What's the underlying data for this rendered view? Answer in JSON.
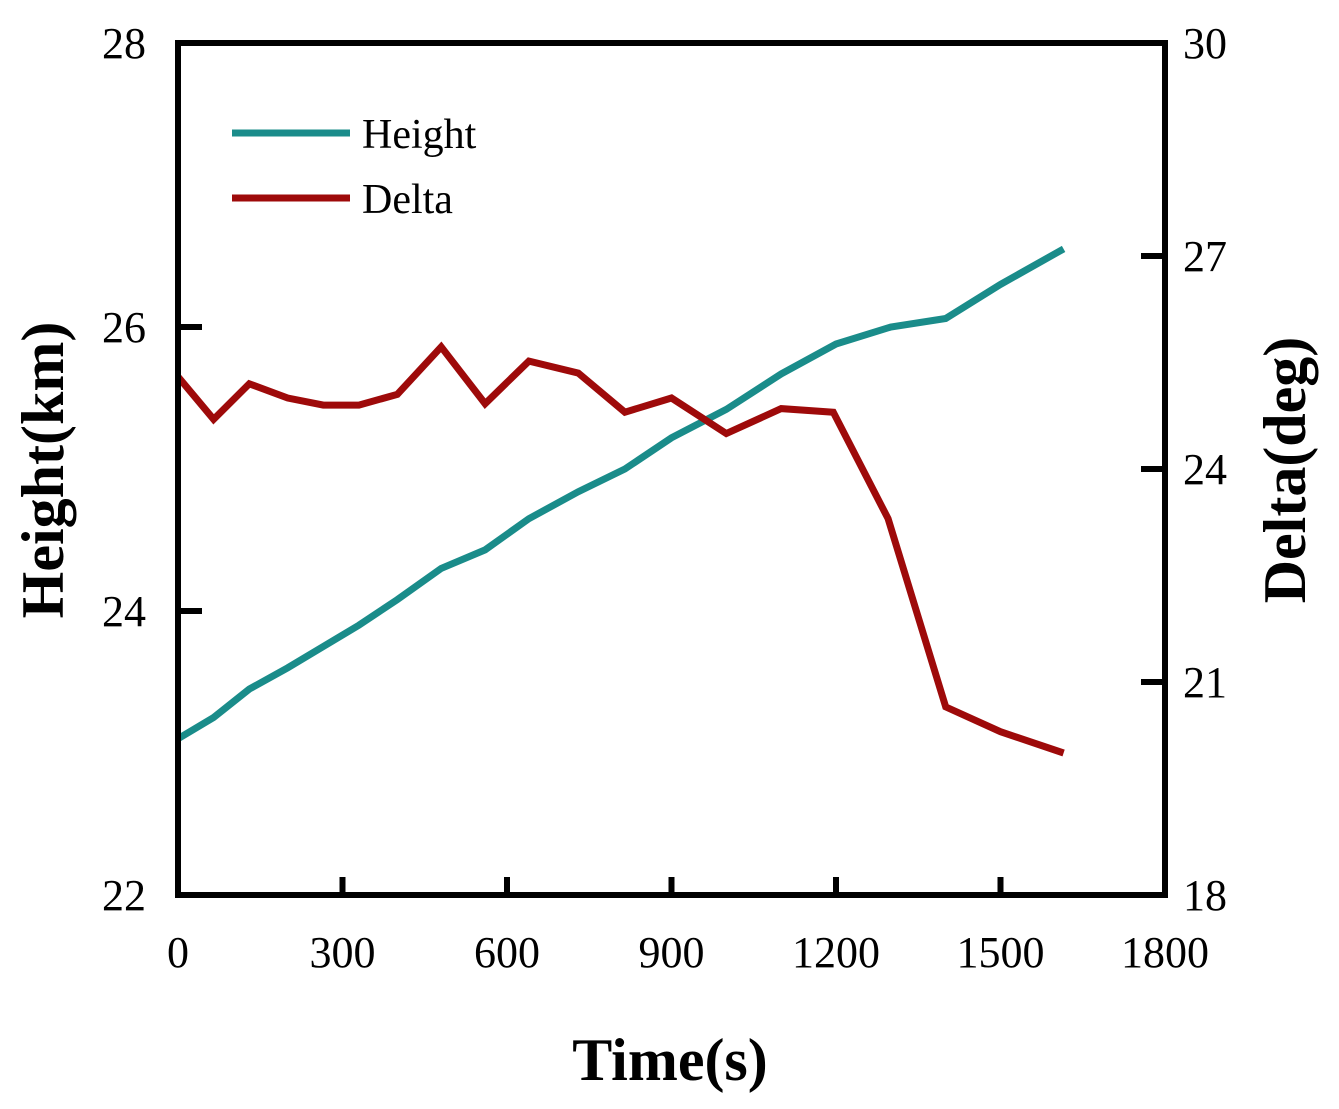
{
  "chart_data": {
    "type": "line",
    "title": "",
    "xlabel": "Time(s)",
    "ylabel_left": "Height(km)",
    "ylabel_right": "Delta(deg)",
    "xlim": [
      0,
      1800
    ],
    "ylim_left": [
      22,
      28
    ],
    "ylim_right": [
      18,
      30
    ],
    "x_ticks": [
      0,
      300,
      600,
      900,
      1200,
      1500,
      1800
    ],
    "y_ticks_left": [
      22,
      24,
      26,
      28
    ],
    "y_ticks_right": [
      18,
      21,
      24,
      27,
      30
    ],
    "grid": false,
    "legend_position": "top-left",
    "series": [
      {
        "name": "Height",
        "axis": "left",
        "color": "#1a8c8a",
        "x": [
          0,
          65,
          130,
          200,
          265,
          330,
          400,
          480,
          560,
          640,
          730,
          815,
          900,
          1000,
          1100,
          1200,
          1300,
          1400,
          1500,
          1615
        ],
        "values": [
          23.1,
          23.25,
          23.45,
          23.6,
          23.75,
          23.9,
          24.08,
          24.3,
          24.43,
          24.65,
          24.84,
          25.0,
          25.22,
          25.42,
          25.67,
          25.88,
          26.0,
          26.06,
          26.3,
          26.55
        ]
      },
      {
        "name": "Delta",
        "axis": "right",
        "color": "#9e0a0a",
        "x": [
          0,
          65,
          130,
          200,
          265,
          330,
          400,
          480,
          560,
          640,
          730,
          815,
          900,
          1000,
          1100,
          1195,
          1295,
          1400,
          1500,
          1615
        ],
        "values": [
          25.3,
          24.7,
          25.2,
          25.0,
          24.9,
          24.9,
          25.05,
          25.72,
          24.92,
          25.52,
          25.35,
          24.8,
          25.0,
          24.5,
          24.85,
          24.8,
          23.3,
          20.65,
          20.3,
          20.0
        ]
      }
    ]
  }
}
